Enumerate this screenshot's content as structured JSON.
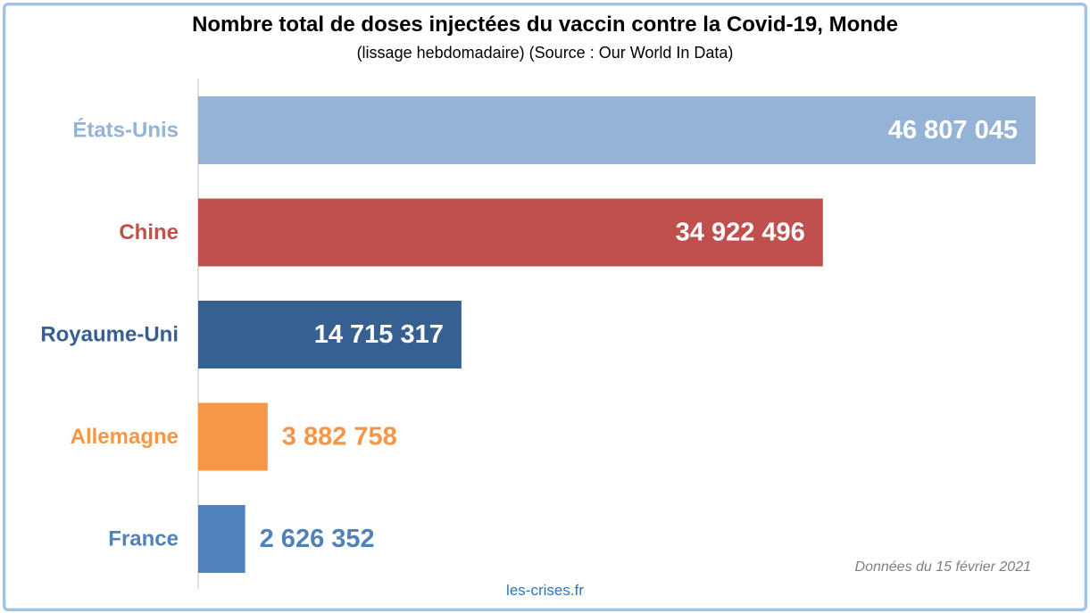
{
  "header": {
    "title": "Nombre total de doses injectées du vaccin contre la Covid-19, Monde",
    "subtitle": "(lissage hebdomadaire) (Source : Our World In Data)"
  },
  "footer": {
    "date_note": "Données du 15 février 2021",
    "credit": "les-crises.fr"
  },
  "chart_data": {
    "type": "bar",
    "orientation": "horizontal",
    "categories": [
      "États-Unis",
      "Chine",
      "Royaume-Uni",
      "Allemagne",
      "France"
    ],
    "values": [
      46807045,
      34922496,
      14715317,
      3882758,
      2626352
    ],
    "value_labels": [
      "46 807 045",
      "34 922 496",
      "14 715 317",
      "3 882 758",
      "2 626 352"
    ],
    "colors": [
      "#95b3d7",
      "#c0504d",
      "#376092",
      "#f79646",
      "#4f81bd"
    ],
    "xlim": [
      0,
      46807045
    ],
    "grid": false,
    "legend": "none"
  }
}
